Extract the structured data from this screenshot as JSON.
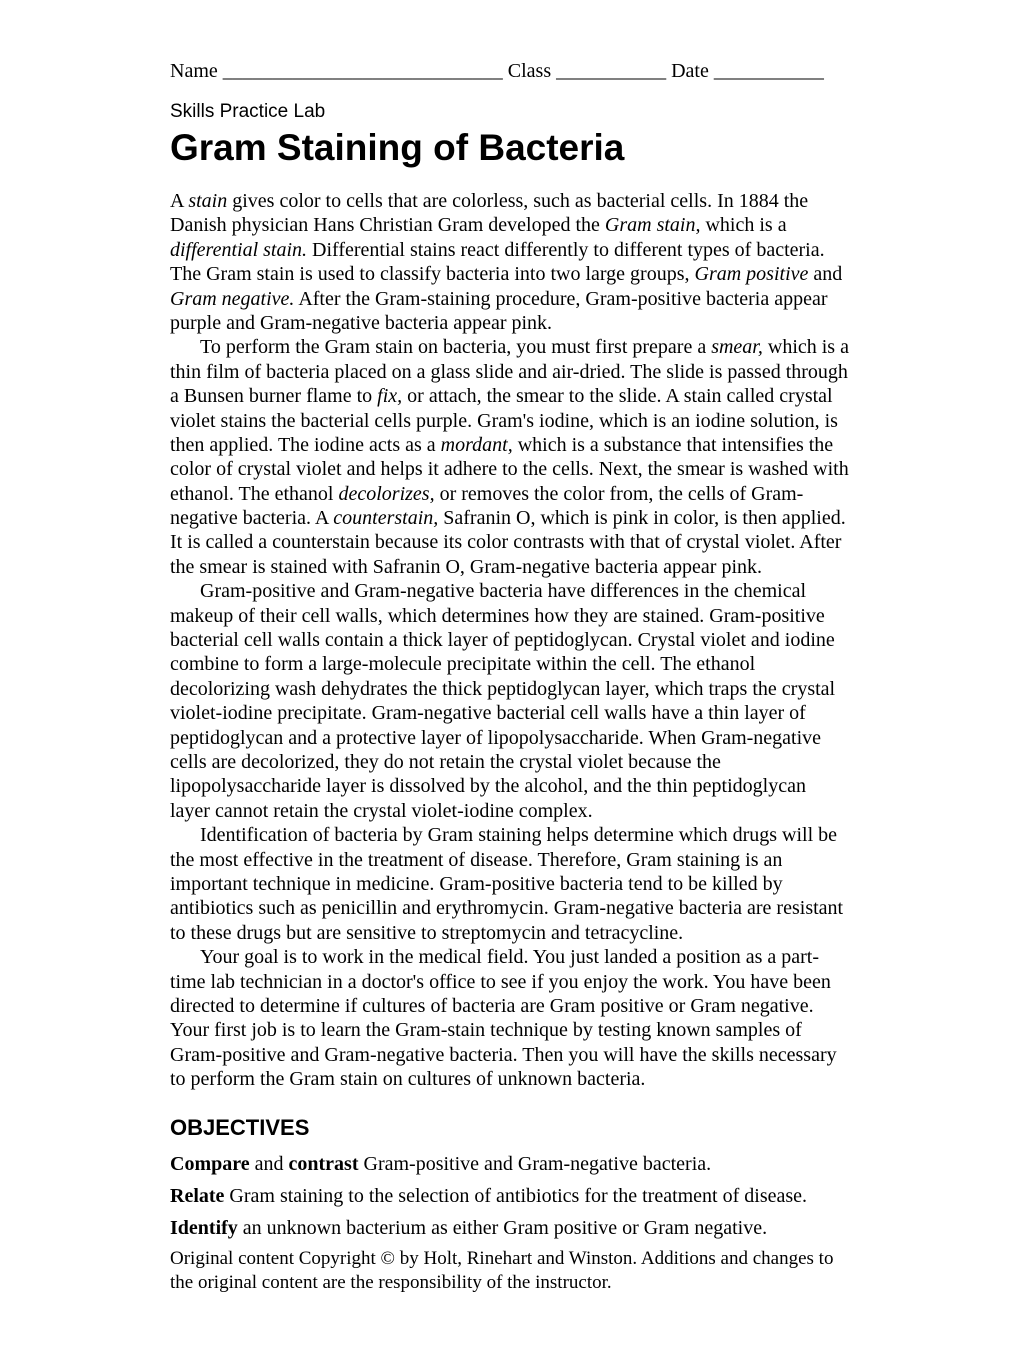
{
  "header": {
    "name_label": "Name ____________________________",
    "class_label": "Class ___________",
    "date_label": "Date ___________"
  },
  "subtitle": "Skills Practice Lab",
  "title": "Gram Staining of Bacteria",
  "para1": {
    "t1": "A ",
    "t2": "stain",
    "t3": " gives color to cells that are colorless, such as bacterial cells. In 1884 the Danish physician Hans Christian Gram developed the ",
    "t4": "Gram stain,",
    "t5": " which is a ",
    "t6": "differential stain.",
    "t7": " Differential stains react differently to different types of bacteria. The Gram stain is used to classify bacteria into two large groups, ",
    "t8": "Gram positive",
    "t9": " and ",
    "t10": "Gram negative.",
    "t11": " After the Gram-staining procedure, Gram-positive bacteria appear purple and Gram-negative bacteria appear pink."
  },
  "para2": {
    "t1": "To perform the Gram stain on bacteria, you must first prepare a ",
    "t2": "smear,",
    "t3": " which is a thin film of bacteria placed on a glass slide and air-dried. The slide is passed through a Bunsen burner flame to ",
    "t4": "fix,",
    "t5": " or attach, the smear to the slide. A stain called crystal violet stains the bacterial cells purple. Gram's iodine, which is an iodine solution, is then applied. The iodine acts as a ",
    "t6": "mordant,",
    "t7": " which is a substance that intensifies the color of crystal violet and helps it adhere to the cells. Next, the smear is washed with ethanol. The ethanol ",
    "t8": "decolorizes,",
    "t9": " or removes the color from, the cells of Gram-negative bacteria. A ",
    "t10": "counterstain,",
    "t11": " Safranin O, which is pink in color, is then applied. It is called a counterstain because its color contrasts with that of crystal violet. After the smear is stained with Safranin O, Gram-negative bacteria appear pink."
  },
  "para3": {
    "t1": "Gram-positive and Gram-negative bacteria have differences in the chemical makeup of their cell walls, which determines how they are stained. Gram-positive bacterial cell walls contain a thick layer of peptidoglycan. Crystal violet and iodine combine to form a large-molecule precipitate within the cell. The ethanol decolorizing wash dehydrates the thick peptidoglycan layer, which traps the crystal violet-iodine precipitate. Gram-negative bacterial cell walls have a thin layer of peptidoglycan and a protective layer of lipopolysaccharide. When Gram-negative cells are decolorized, they do not retain the crystal violet because the lipopolysaccharide layer is dissolved by the alcohol, and the thin peptidoglycan layer cannot retain the crystal violet-iodine complex."
  },
  "para4": {
    "t1": "Identification of bacteria by Gram staining helps determine which drugs will be the most effective in the treatment of disease. Therefore, Gram staining is an important technique in medicine. Gram-positive bacteria tend to be killed by antibiotics such as penicillin and erythromycin. Gram-negative bacteria are resistant to these drugs but are sensitive to streptomycin and tetracycline."
  },
  "para5": {
    "t1": "Your goal is to work in the medical field. You just landed a position as a part-time lab technician in a doctor's office to see if you enjoy the work. You have been directed to determine if cultures of bacteria are Gram positive or Gram negative. Your first job is to learn the Gram-stain technique by testing known samples of Gram-positive and Gram-negative bacteria. Then you will have the skills necessary to perform the Gram stain on cultures of unknown bacteria."
  },
  "objectives_heading": "OBJECTIVES",
  "obj1": {
    "b1": "Compare",
    "t1": " and ",
    "b2": "contrast",
    "t2": " Gram-positive and Gram-negative bacteria."
  },
  "obj2": {
    "b1": "Relate",
    "t1": " Gram staining to the selection of antibiotics for the treatment of disease."
  },
  "obj3": {
    "b1": "Identify",
    "t1": " an unknown bacterium as either Gram positive or Gram negative."
  },
  "copyright": "Original content Copyright © by Holt, Rinehart and Winston. Additions and changes to the original content are the responsibility of the instructor."
}
